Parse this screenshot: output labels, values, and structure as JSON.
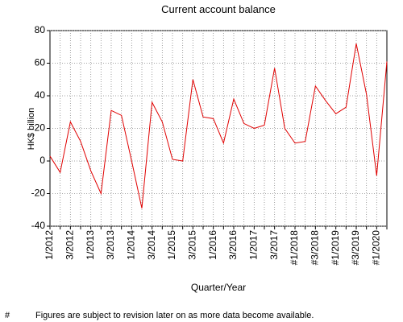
{
  "chart_data": {
    "type": "line",
    "title": "Current account balance",
    "x_label": "Quarter/Year",
    "y_label": "HK$ billion",
    "categories": [
      "1/2012",
      null,
      "3/2012",
      null,
      "1/2013",
      null,
      "3/2013",
      null,
      "1/2014",
      null,
      "3/2014",
      null,
      "1/2015",
      null,
      "3/2015",
      null,
      "1/2016",
      null,
      "3/2016",
      null,
      "1/2017",
      null,
      "3/2017",
      null,
      "#1/2018",
      null,
      "#3/2018",
      null,
      "#1/2019",
      null,
      "#3/2019",
      null,
      "#1/2020",
      null
    ],
    "series": [
      {
        "name": "Current account balance",
        "color": "#e00000",
        "values": [
          3,
          -7,
          24,
          12,
          -6,
          -20,
          31,
          28,
          0,
          -29,
          36,
          24,
          1,
          0,
          50,
          27,
          26,
          11,
          38,
          23,
          20,
          22,
          57,
          20,
          11,
          12,
          46,
          37,
          29,
          33,
          72,
          41,
          -9,
          61
        ]
      }
    ],
    "ylim": [
      -40,
      80
    ],
    "yticks": [
      -40,
      -20,
      0,
      20,
      40,
      60,
      80
    ],
    "grid": true,
    "footnote_marker": "#",
    "footnote": "Figures are subject to revision later on as more data become available."
  }
}
